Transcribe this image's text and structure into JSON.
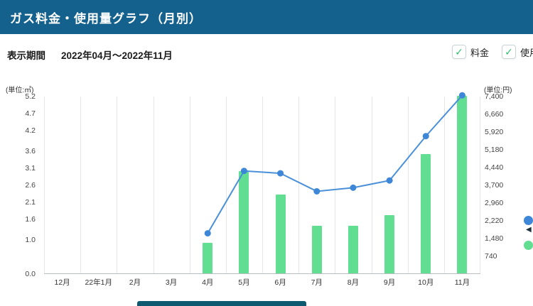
{
  "header": {
    "title": "ガス料金・使用量グラフ（月別）"
  },
  "period": {
    "label": "表示期間",
    "value": "2022年04月〜2022年11月"
  },
  "filters": {
    "check": "✓",
    "fee_label": "料金",
    "usage_label": "使用量"
  },
  "colors": {
    "header_bg": "#15618e",
    "bar_green": "#62de92",
    "line_blue": "#4a90d9",
    "dot_blue": "#3e86d7",
    "check_green": "#2fbf71",
    "footer_bg": "#0d5a70"
  },
  "chart_data": {
    "type": "combo",
    "categories": [
      "12月",
      "22年1月",
      "2月",
      "3月",
      "4月",
      "5月",
      "6月",
      "7月",
      "8月",
      "9月",
      "10月",
      "11月"
    ],
    "series": [
      {
        "name": "使用量",
        "type": "bar",
        "axis": "left",
        "unit": "㎥",
        "color": "#62de92",
        "values": [
          null,
          null,
          null,
          null,
          0.9,
          3.0,
          2.3,
          1.4,
          1.4,
          1.7,
          3.5,
          5.2
        ]
      },
      {
        "name": "料金",
        "type": "line",
        "axis": "right",
        "unit": "円",
        "color": "#4a90d9",
        "values": [
          null,
          null,
          null,
          null,
          1700,
          4300,
          4200,
          3450,
          3600,
          3900,
          5750,
          7450
        ]
      }
    ],
    "left_axis": {
      "unit_label": "(単位:㎥)",
      "ticks": [
        5.2,
        4.7,
        4.2,
        3.6,
        3.1,
        2.6,
        2.1,
        1.6,
        1.0,
        0.0
      ],
      "min": 0,
      "max": 5.2
    },
    "right_axis": {
      "unit_label": "(単位:円)",
      "ticks": [
        "7,400",
        "6,660",
        "5,920",
        "5,180",
        "4,440",
        "3,700",
        "2,960",
        "2,220",
        "1,480",
        "740"
      ],
      "min": 0,
      "max": 7400
    },
    "grid": "vertical",
    "legend_position": "right-edge-clipped"
  }
}
